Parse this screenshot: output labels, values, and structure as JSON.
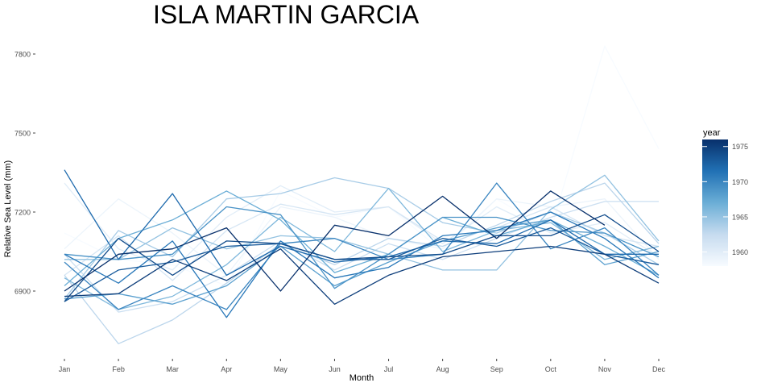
{
  "chart_data": {
    "type": "line",
    "title": "ISLA MARTIN GARCIA",
    "xlabel": "Month",
    "ylabel": "Relative Sea Level (mm)",
    "categories": [
      "Jan",
      "Feb",
      "Mar",
      "Apr",
      "May",
      "Jun",
      "Jul",
      "Aug",
      "Sep",
      "Oct",
      "Nov",
      "Dec"
    ],
    "yticks": [
      6900,
      7200,
      7500,
      7800
    ],
    "ylim": [
      6660,
      7860
    ],
    "grid": false,
    "legend": {
      "title": "year",
      "type": "colorbar",
      "position": "right",
      "ticks": [
        1960,
        1965,
        1970,
        1975
      ],
      "range": [
        1958,
        1976
      ],
      "low_color": "#f7fbff",
      "high_color": "#08306b"
    },
    "series": [
      {
        "year": 1958,
        "values": [
          7120,
          7020,
          7000,
          6920,
          7280,
          7180,
          7220,
          7050,
          7250,
          7130,
          7830,
          7440
        ]
      },
      {
        "year": 1959,
        "values": [
          7060,
          7250,
          7120,
          6960,
          7220,
          7180,
          7100,
          7060,
          7250,
          7220,
          7250,
          7020
        ]
      },
      {
        "year": 1960,
        "values": [
          7310,
          7060,
          6980,
          7180,
          7300,
          7200,
          7220,
          7080,
          7220,
          7120,
          7160,
          7030
        ]
      },
      {
        "year": 1961,
        "values": [
          6960,
          7110,
          6940,
          7130,
          7230,
          7190,
          7220,
          7090,
          7140,
          7220,
          7110,
          7070
        ]
      },
      {
        "year": 1962,
        "values": [
          7040,
          6820,
          6860,
          6960,
          7090,
          6980,
          7080,
          7020,
          7100,
          7180,
          7240,
          7240
        ]
      },
      {
        "year": 1963,
        "values": [
          6960,
          6700,
          6790,
          6930,
          7080,
          7000,
          7100,
          7070,
          7150,
          7240,
          7310,
          7080
        ]
      },
      {
        "year": 1964,
        "values": [
          6870,
          7130,
          7030,
          7250,
          7270,
          7330,
          7290,
          7160,
          7120,
          7200,
          7120,
          7000
        ]
      },
      {
        "year": 1965,
        "values": [
          7020,
          7020,
          7140,
          7060,
          7110,
          7100,
          7040,
          6980,
          6980,
          7210,
          7340,
          7090
        ]
      },
      {
        "year": 1966,
        "values": [
          6950,
          6830,
          6880,
          7000,
          7180,
          7050,
          7290,
          7050,
          7130,
          7160,
          7020,
          7070
        ]
      },
      {
        "year": 1967,
        "values": [
          6920,
          7100,
          7170,
          7280,
          7170,
          6970,
          7040,
          7180,
          7110,
          7170,
          7070,
          6960
        ]
      },
      {
        "year": 1968,
        "values": [
          6870,
          6890,
          6850,
          6920,
          7070,
          6920,
          7010,
          7090,
          7140,
          7170,
          7000,
          7050
        ]
      },
      {
        "year": 1969,
        "values": [
          7040,
          7020,
          7040,
          7220,
          7190,
          6910,
          7040,
          7180,
          7180,
          7130,
          7120,
          7030
        ]
      },
      {
        "year": 1970,
        "values": [
          7010,
          6830,
          6920,
          6830,
          7080,
          7100,
          7020,
          7040,
          7310,
          7060,
          7140,
          6960
        ]
      },
      {
        "year": 1971,
        "values": [
          7040,
          6930,
          7090,
          6800,
          7090,
          6950,
          6990,
          7110,
          7130,
          7200,
          7100,
          6950
        ]
      },
      {
        "year": 1972,
        "values": [
          7360,
          7020,
          7270,
          6960,
          7070,
          7010,
          7030,
          7090,
          7080,
          7170,
          7040,
          7040
        ]
      },
      {
        "year": 1973,
        "values": [
          6860,
          6980,
          7010,
          7070,
          7080,
          7020,
          7020,
          7100,
          7070,
          7140,
          7040,
          7000
        ]
      },
      {
        "year": 1974,
        "values": [
          6860,
          7100,
          6960,
          7090,
          7080,
          7020,
          7030,
          7040,
          7110,
          7110,
          7190,
          7050
        ]
      },
      {
        "year": 1975,
        "values": [
          6880,
          6890,
          7020,
          6940,
          7060,
          6850,
          6960,
          7030,
          7050,
          7070,
          7040,
          6930
        ]
      },
      {
        "year": 1976,
        "values": [
          6900,
          7040,
          7060,
          7140,
          6900,
          7150,
          7110,
          7260,
          7100,
          7280,
          7150,
          null
        ]
      }
    ]
  }
}
